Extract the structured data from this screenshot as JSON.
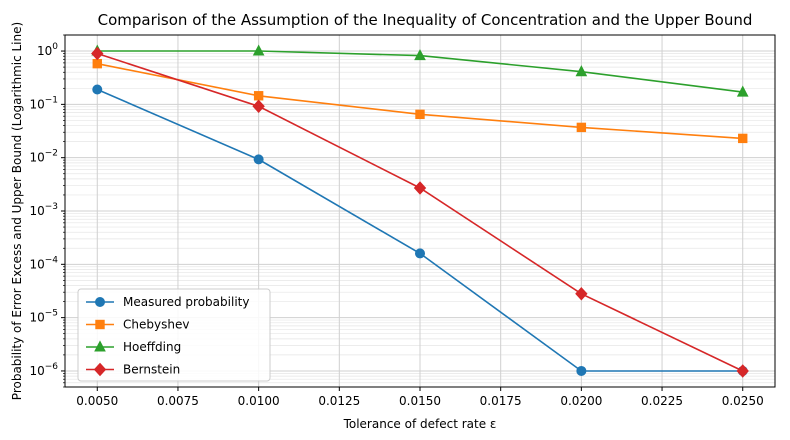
{
  "chart_data": {
    "type": "line",
    "title": "Comparison of the Assumption of the Inequality of Concentration and the Upper Bound",
    "xlabel": "Tolerance of defect rate  ε",
    "ylabel": "Probability of Error Excess and Upper Bound (Logarithmic Line)",
    "x_scale": "linear",
    "y_scale": "log",
    "xlim": [
      0.004,
      0.026
    ],
    "ylim": [
      5e-07,
      2
    ],
    "grid": true,
    "legend_position": "lower-left",
    "x_ticks": [
      0.005,
      0.0075,
      0.01,
      0.0125,
      0.015,
      0.0175,
      0.02,
      0.0225,
      0.025
    ],
    "x_tick_labels": [
      "0.0050",
      "0.0075",
      "0.0100",
      "0.0125",
      "0.0150",
      "0.0175",
      "0.0200",
      "0.0225",
      "0.0250"
    ],
    "y_ticks": [
      {
        "value": 1e-06,
        "base": "10",
        "exp": "−6"
      },
      {
        "value": 1e-05,
        "base": "10",
        "exp": "−5"
      },
      {
        "value": 0.0001,
        "base": "10",
        "exp": "−4"
      },
      {
        "value": 0.001,
        "base": "10",
        "exp": "−3"
      },
      {
        "value": 0.01,
        "base": "10",
        "exp": "−2"
      },
      {
        "value": 0.1,
        "base": "10",
        "exp": "−1"
      },
      {
        "value": 1,
        "base": "10",
        "exp": "0"
      }
    ],
    "x": [
      0.005,
      0.01,
      0.015,
      0.02,
      0.025
    ],
    "series": [
      {
        "name": "Measured probability",
        "color": "#1f77b4",
        "marker": "circle",
        "values": [
          0.19,
          0.0093,
          0.00016,
          1e-06,
          1e-06
        ]
      },
      {
        "name": "Chebyshev",
        "color": "#ff7f0e",
        "marker": "square",
        "values": [
          0.58,
          0.145,
          0.065,
          0.037,
          0.023
        ]
      },
      {
        "name": "Hoeffding",
        "color": "#2ca02c",
        "marker": "triangle",
        "values": [
          1.0,
          1.0,
          0.82,
          0.41,
          0.17
        ]
      },
      {
        "name": "Bernstein",
        "color": "#d62728",
        "marker": "diamond",
        "values": [
          0.9,
          0.092,
          0.0027,
          2.8e-05,
          1e-06
        ]
      }
    ]
  }
}
